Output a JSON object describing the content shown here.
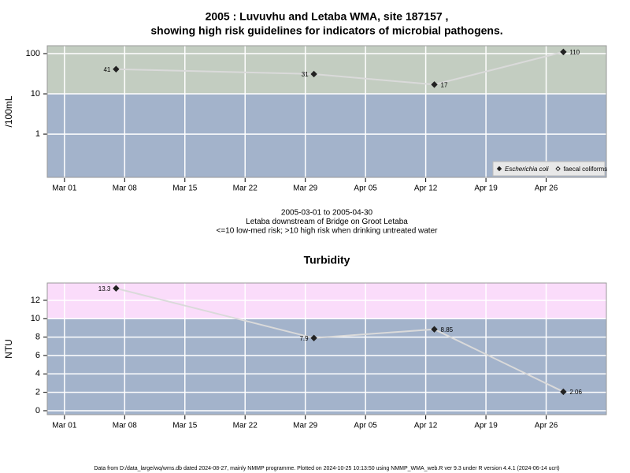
{
  "chart_data": [
    {
      "type": "line",
      "title": [
        "2005 : Luvuvhu and Letaba WMA, site 187157 ,",
        "showing high risk guidelines for indicators of microbial pathogens."
      ],
      "subtitle": [
        "2005-03-01 to 2005-04-30",
        "Letaba downstream of Bridge on Groot Letaba",
        "<=10 low-med risk; >10 high risk when drinking untreated water"
      ],
      "y_label": "/100mL",
      "ylog": true,
      "x": [
        "03-07",
        "03-30",
        "04-13",
        "04-28"
      ],
      "series": [
        {
          "name": "Escherichia coli",
          "color": "#222222",
          "filled": true,
          "values": [
            41,
            31,
            17,
            110
          ]
        },
        {
          "name": "faecal coliforms",
          "color": "#222222",
          "filled": false,
          "values": [
            null,
            null,
            null,
            null
          ]
        }
      ],
      "line_color": "#dadada",
      "xlim": [
        "02-27",
        "05-03"
      ],
      "xticks": [
        {
          "value": "03-01",
          "label": "Mar 01"
        },
        {
          "value": "03-08",
          "label": "Mar 08"
        },
        {
          "value": "03-15",
          "label": "Mar 15"
        },
        {
          "value": "03-22",
          "label": "Mar 22"
        },
        {
          "value": "03-29",
          "label": "Mar 29"
        },
        {
          "value": "04-05",
          "label": "Apr 05"
        },
        {
          "value": "04-12",
          "label": "Apr 12"
        },
        {
          "value": "04-19",
          "label": "Apr 19"
        },
        {
          "value": "04-26",
          "label": "Apr 26"
        }
      ],
      "ylim": [
        0.084,
        157
      ],
      "yticks": [
        1,
        10,
        100
      ],
      "threshold": 10,
      "band_colors": {
        "below": "#a3b3cb",
        "above": "#c3cdc1"
      },
      "grid": true,
      "legend": "bottom-right"
    },
    {
      "type": "line",
      "title": [
        "Turbidity"
      ],
      "y_label": "NTU",
      "ylog": false,
      "x": [
        "03-07",
        "03-30",
        "04-13",
        "04-28"
      ],
      "values": [
        13.3,
        7.9,
        8.85,
        2.06
      ],
      "color": "#222222",
      "line_color": "#dadada",
      "xlim": [
        "02-27",
        "05-03"
      ],
      "xticks": [
        {
          "value": "03-01",
          "label": "Mar 01"
        },
        {
          "value": "03-08",
          "label": "Mar 08"
        },
        {
          "value": "03-15",
          "label": "Mar 15"
        },
        {
          "value": "03-22",
          "label": "Mar 22"
        },
        {
          "value": "03-29",
          "label": "Mar 29"
        },
        {
          "value": "04-05",
          "label": "Apr 05"
        },
        {
          "value": "04-12",
          "label": "Apr 12"
        },
        {
          "value": "04-19",
          "label": "Apr 19"
        },
        {
          "value": "04-26",
          "label": "Apr 26"
        }
      ],
      "ylim": [
        -0.43,
        13.88
      ],
      "yticks": [
        0,
        2,
        4,
        6,
        8,
        10,
        12
      ],
      "threshold": 10,
      "band_colors": {
        "below": "#a3b3cb",
        "above": "#fadcfa"
      },
      "grid": true
    }
  ],
  "footer": "Data from D:/data_large/wq/wms.db dated 2024-08-27, mainly NMMP programme. Plotted on 2024-10-25 10:13:50 using NMMP_WMA_web.R ver 9.3 under R version 4.4.1 (2024-06-14 ucrt)"
}
